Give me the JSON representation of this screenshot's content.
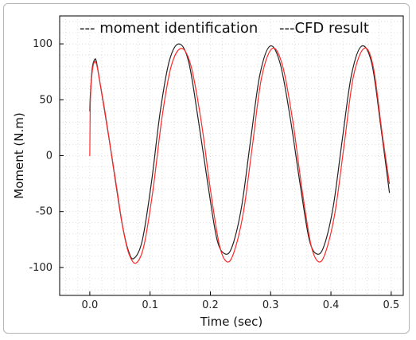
{
  "chart_data": {
    "type": "line",
    "title": "",
    "xlabel": "Time (sec)",
    "ylabel": "Moment (N.m)",
    "xlim": [
      -0.05,
      0.52
    ],
    "ylim": [
      -125,
      125
    ],
    "xticks": [
      0.0,
      0.1,
      0.2,
      0.3,
      0.4,
      0.5
    ],
    "xtick_labels": [
      "0.0",
      "0.1",
      "0.2",
      "0.3",
      "0.4",
      "0.5"
    ],
    "yticks": [
      100,
      50,
      0,
      -50,
      -100
    ],
    "ytick_labels": [
      "100",
      "50",
      "0",
      "-50",
      "-100"
    ],
    "grid": true,
    "legend_position": "top",
    "series": [
      {
        "name": "moment identification",
        "legend_label": "--- moment identification",
        "color": "#ff2a2a",
        "style": "dashed",
        "x": [
          0.0,
          0.001,
          0.004,
          0.008,
          0.012,
          0.017,
          0.025,
          0.035,
          0.045,
          0.055,
          0.065,
          0.077,
          0.09,
          0.105,
          0.12,
          0.135,
          0.152,
          0.168,
          0.185,
          0.2,
          0.215,
          0.228,
          0.24,
          0.255,
          0.27,
          0.285,
          0.303,
          0.32,
          0.337,
          0.352,
          0.367,
          0.38,
          0.392,
          0.407,
          0.422,
          0.437,
          0.455,
          0.47,
          0.485,
          0.497
        ],
        "y": [
          0,
          50,
          75,
          84,
          80,
          65,
          40,
          5,
          -30,
          -65,
          -88,
          -96,
          -80,
          -30,
          35,
          80,
          96,
          80,
          30,
          -30,
          -80,
          -95,
          -85,
          -50,
          10,
          70,
          96,
          80,
          30,
          -30,
          -80,
          -95,
          -85,
          -50,
          10,
          70,
          96,
          80,
          20,
          -25
        ]
      },
      {
        "name": "CFD result",
        "legend_label": "---CFD result",
        "color": "#222222",
        "style": "solid",
        "x": [
          0.0,
          0.001,
          0.004,
          0.008,
          0.011,
          0.016,
          0.024,
          0.034,
          0.044,
          0.054,
          0.064,
          0.073,
          0.087,
          0.102,
          0.117,
          0.132,
          0.148,
          0.164,
          0.18,
          0.196,
          0.211,
          0.225,
          0.237,
          0.252,
          0.267,
          0.282,
          0.299,
          0.316,
          0.333,
          0.349,
          0.364,
          0.377,
          0.389,
          0.404,
          0.419,
          0.434,
          0.451,
          0.468,
          0.483,
          0.497
        ],
        "y": [
          40,
          55,
          78,
          86,
          84,
          68,
          42,
          8,
          -28,
          -62,
          -85,
          -92,
          -76,
          -25,
          40,
          85,
          100,
          84,
          32,
          -26,
          -75,
          -88,
          -80,
          -45,
          15,
          72,
          98,
          82,
          32,
          -26,
          -75,
          -88,
          -80,
          -45,
          15,
          72,
          98,
          82,
          25,
          -33
        ]
      }
    ]
  }
}
